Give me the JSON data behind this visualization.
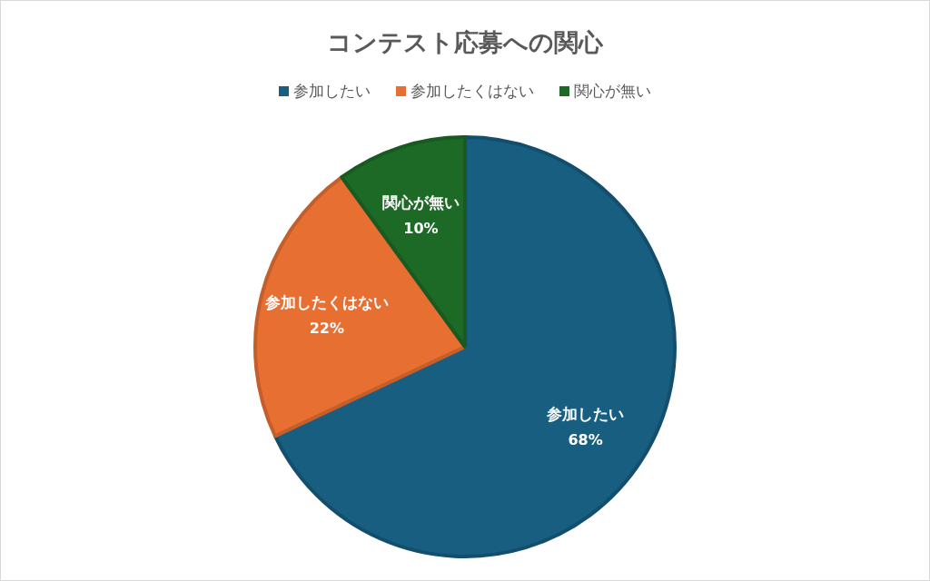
{
  "chart_data": {
    "type": "pie",
    "title": "コンテスト応募への関心",
    "categories": [
      "参加したい",
      "参加したくはない",
      "関心が無い"
    ],
    "values": [
      68,
      22,
      10
    ],
    "colors": [
      "#175e81",
      "#e76f32",
      "#1d6a27"
    ],
    "value_labels": [
      "68%",
      "22%",
      "10%"
    ],
    "legend": "top"
  }
}
